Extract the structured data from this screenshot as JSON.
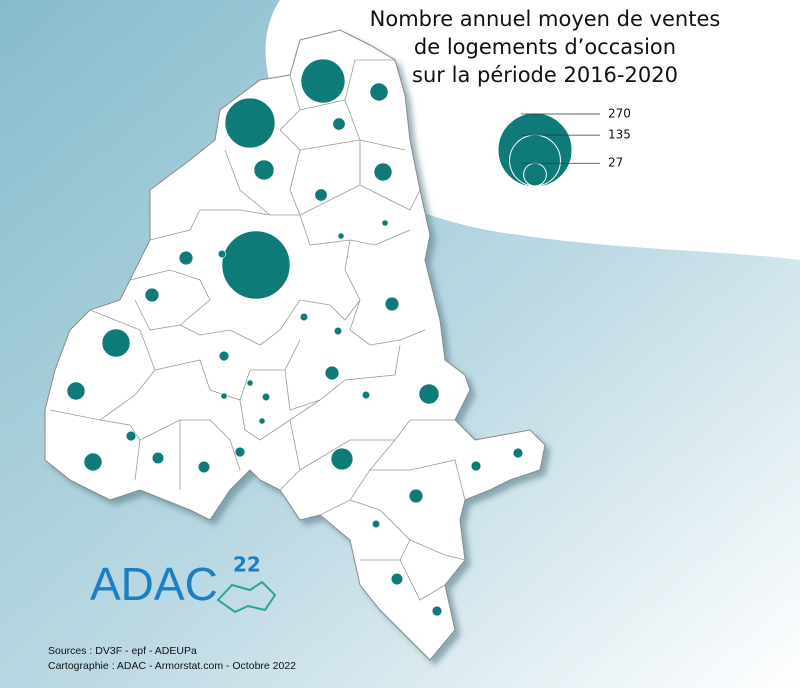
{
  "title": [
    "Nombre annuel moyen de ventes",
    "de logements d’occasion",
    "sur la période 2016-2020"
  ],
  "legend": {
    "values": [
      270,
      135,
      27
    ]
  },
  "bubbles": {
    "values": [
      241,
      101,
      130,
      41,
      17,
      8,
      21,
      17,
      8,
      2,
      2,
      10,
      3,
      10,
      10,
      3,
      3,
      5,
      10,
      3,
      21,
      17,
      2,
      3,
      2,
      2,
      5,
      5,
      7,
      17,
      7,
      25,
      5,
      5,
      10,
      3,
      7,
      5
    ]
  },
  "logo": {
    "name": "ADAC",
    "number": "22"
  },
  "sources": [
    "Sources : DV3F - epf - ADEUPa",
    "Cartographie : ADAC - Armorstat.com - Octobre 2022"
  ]
}
